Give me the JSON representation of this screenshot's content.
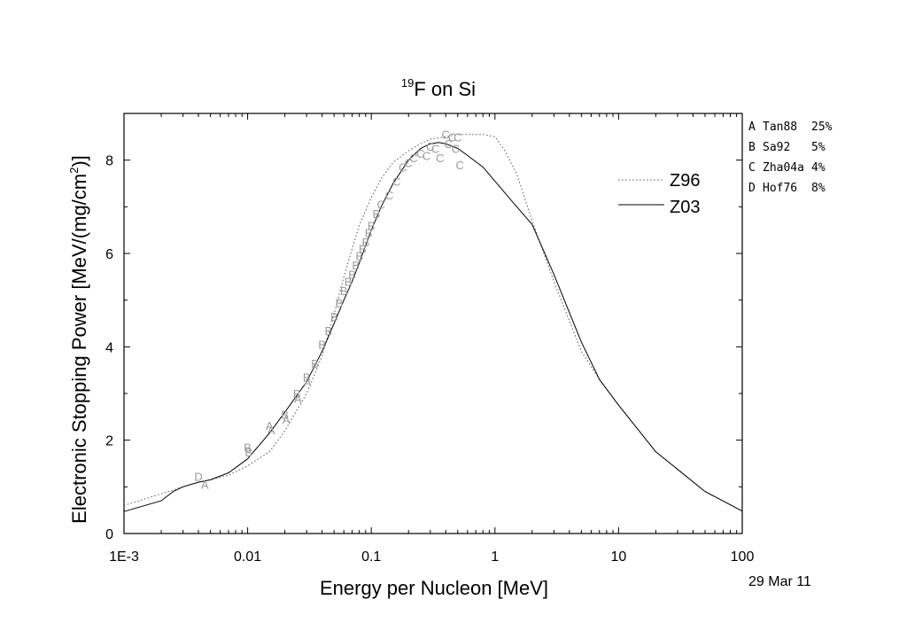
{
  "chart_data": {
    "type": "line",
    "title": {
      "sup": "19",
      "main": "F on Si"
    },
    "xlabel": "Energy per Nucleon [MeV]",
    "ylabel": {
      "pre": "Electronic Stopping Power [MeV/(mg/cm",
      "sup": "2",
      "post": ")]"
    },
    "x_scale": "log",
    "xlim": [
      0.001,
      100
    ],
    "ylim": [
      0,
      9
    ],
    "x_ticks": [
      {
        "value": 0.001,
        "label": "1E-3"
      },
      {
        "value": 0.01,
        "label": "0.01"
      },
      {
        "value": 0.1,
        "label": "0.1"
      },
      {
        "value": 1,
        "label": "1"
      },
      {
        "value": 10,
        "label": "10"
      },
      {
        "value": 100,
        "label": "100"
      }
    ],
    "y_ticks": [
      {
        "value": 0,
        "label": "0"
      },
      {
        "value": 2,
        "label": "2"
      },
      {
        "value": 4,
        "label": "4"
      },
      {
        "value": 6,
        "label": "6"
      },
      {
        "value": 8,
        "label": "8"
      }
    ],
    "grid": false,
    "legend_position": "top-right",
    "series": [
      {
        "name": "Z96",
        "style": "dotted",
        "color": "#555555",
        "x": [
          0.001,
          0.002,
          0.003,
          0.004,
          0.005,
          0.007,
          0.01,
          0.015,
          0.02,
          0.03,
          0.04,
          0.05,
          0.06,
          0.07,
          0.08,
          0.1,
          0.12,
          0.15,
          0.2,
          0.25,
          0.3,
          0.4,
          0.5,
          0.6,
          0.8,
          1.0,
          1.2,
          1.5,
          2.0,
          3.0,
          5.0,
          7.0,
          10,
          20,
          50,
          100
        ],
        "y": [
          0.6,
          0.85,
          1.0,
          1.1,
          1.15,
          1.25,
          1.45,
          1.75,
          2.2,
          3.0,
          3.8,
          4.7,
          5.5,
          6.1,
          6.6,
          7.2,
          7.6,
          7.95,
          8.2,
          8.35,
          8.45,
          8.5,
          8.55,
          8.55,
          8.55,
          8.5,
          8.2,
          7.7,
          6.7,
          5.4,
          3.9,
          3.3,
          2.75,
          1.75,
          0.9,
          0.48
        ]
      },
      {
        "name": "Z03",
        "style": "solid",
        "color": "#000000",
        "x": [
          0.001,
          0.002,
          0.0025,
          0.003,
          0.004,
          0.005,
          0.007,
          0.01,
          0.015,
          0.02,
          0.03,
          0.04,
          0.05,
          0.06,
          0.07,
          0.08,
          0.1,
          0.12,
          0.15,
          0.2,
          0.25,
          0.3,
          0.35,
          0.4,
          0.5,
          0.6,
          0.8,
          1.0,
          1.5,
          2.0,
          3.0,
          5.0,
          7.0,
          10,
          20,
          50,
          100
        ],
        "y": [
          0.47,
          0.7,
          0.9,
          1.0,
          1.1,
          1.15,
          1.3,
          1.6,
          2.15,
          2.6,
          3.25,
          3.9,
          4.5,
          5.0,
          5.4,
          5.8,
          6.5,
          7.0,
          7.5,
          8.0,
          8.25,
          8.35,
          8.38,
          8.35,
          8.25,
          8.1,
          7.85,
          7.55,
          7.0,
          6.62,
          5.55,
          4.1,
          3.3,
          2.75,
          1.75,
          0.9,
          0.48
        ]
      }
    ],
    "experimental_points": [
      {
        "letter": "D",
        "x": 0.004,
        "y": 1.22
      },
      {
        "letter": "A",
        "x": 0.0045,
        "y": 1.05
      },
      {
        "letter": "B",
        "x": 0.01,
        "y": 1.85
      },
      {
        "letter": "B",
        "x": 0.0102,
        "y": 1.75
      },
      {
        "letter": "A",
        "x": 0.015,
        "y": 2.32
      },
      {
        "letter": "A",
        "x": 0.0155,
        "y": 2.22
      },
      {
        "letter": "B",
        "x": 0.02,
        "y": 2.55
      },
      {
        "letter": "A",
        "x": 0.0205,
        "y": 2.45
      },
      {
        "letter": "B",
        "x": 0.025,
        "y": 3.0
      },
      {
        "letter": "A",
        "x": 0.0255,
        "y": 2.9
      },
      {
        "letter": "B",
        "x": 0.03,
        "y": 3.35
      },
      {
        "letter": "A",
        "x": 0.0305,
        "y": 3.25
      },
      {
        "letter": "B",
        "x": 0.035,
        "y": 3.65
      },
      {
        "letter": "B",
        "x": 0.04,
        "y": 4.05
      },
      {
        "letter": "B",
        "x": 0.045,
        "y": 4.35
      },
      {
        "letter": "B",
        "x": 0.05,
        "y": 4.65
      },
      {
        "letter": "B",
        "x": 0.055,
        "y": 4.95
      },
      {
        "letter": "B",
        "x": 0.06,
        "y": 5.2
      },
      {
        "letter": "B",
        "x": 0.065,
        "y": 5.4
      },
      {
        "letter": "B",
        "x": 0.07,
        "y": 5.55
      },
      {
        "letter": "B",
        "x": 0.075,
        "y": 5.75
      },
      {
        "letter": "B",
        "x": 0.08,
        "y": 5.95
      },
      {
        "letter": "B",
        "x": 0.085,
        "y": 6.1
      },
      {
        "letter": "B",
        "x": 0.09,
        "y": 6.25
      },
      {
        "letter": "B",
        "x": 0.095,
        "y": 6.45
      },
      {
        "letter": "B",
        "x": 0.1,
        "y": 6.6
      },
      {
        "letter": "B",
        "x": 0.11,
        "y": 6.85
      },
      {
        "letter": "C",
        "x": 0.12,
        "y": 7.05
      },
      {
        "letter": "C",
        "x": 0.14,
        "y": 7.25
      },
      {
        "letter": "C",
        "x": 0.16,
        "y": 7.55
      },
      {
        "letter": "C",
        "x": 0.18,
        "y": 7.85
      },
      {
        "letter": "C",
        "x": 0.2,
        "y": 7.95
      },
      {
        "letter": "C",
        "x": 0.22,
        "y": 8.05
      },
      {
        "letter": "C",
        "x": 0.25,
        "y": 8.15
      },
      {
        "letter": "C",
        "x": 0.28,
        "y": 8.1
      },
      {
        "letter": "C",
        "x": 0.3,
        "y": 8.3
      },
      {
        "letter": "C",
        "x": 0.33,
        "y": 8.25
      },
      {
        "letter": "C",
        "x": 0.36,
        "y": 8.05
      },
      {
        "letter": "C",
        "x": 0.4,
        "y": 8.55
      },
      {
        "letter": "C",
        "x": 0.42,
        "y": 8.35
      },
      {
        "letter": "C",
        "x": 0.45,
        "y": 8.5
      },
      {
        "letter": "C",
        "x": 0.48,
        "y": 8.25
      },
      {
        "letter": "C",
        "x": 0.5,
        "y": 8.5
      },
      {
        "letter": "C",
        "x": 0.52,
        "y": 7.9
      }
    ],
    "references": [
      {
        "letter": "A",
        "name": "Tan88",
        "pct": "25%"
      },
      {
        "letter": "B",
        "name": "Sa92",
        "pct": "5%"
      },
      {
        "letter": "C",
        "name": "Zha04a",
        "pct": "4%"
      },
      {
        "letter": "D",
        "name": "Hof76",
        "pct": "8%"
      }
    ],
    "date": "29 Mar 11"
  }
}
